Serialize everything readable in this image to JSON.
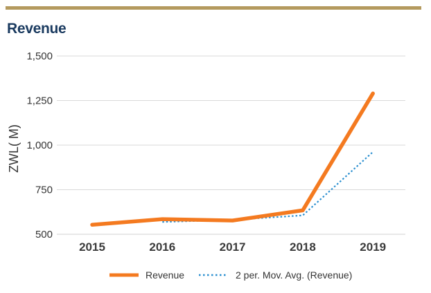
{
  "chart_data": {
    "type": "line",
    "title": "Revenue",
    "xlabel": "",
    "ylabel": "ZWL( M)",
    "categories": [
      "2015",
      "2016",
      "2017",
      "2018",
      "2019"
    ],
    "y_ticks": [
      "500",
      "750",
      "1,000",
      "1,250",
      "1,500"
    ],
    "ylim": [
      500,
      1500
    ],
    "grid": true,
    "legend_position": "bottom",
    "series": [
      {
        "name": "Revenue",
        "values": [
          553,
          585,
          577,
          634,
          1290
        ],
        "color": "#f47a20",
        "style": "solid"
      },
      {
        "name": "2 per. Mov. Avg. (Revenue)",
        "values": [
          null,
          569,
          581,
          606,
          962
        ],
        "color": "#2a8fd0",
        "style": "dotted"
      }
    ]
  },
  "colors": {
    "title": "#1b3b60",
    "rule": "#b49a5e",
    "grid": "#d9d9d9"
  }
}
